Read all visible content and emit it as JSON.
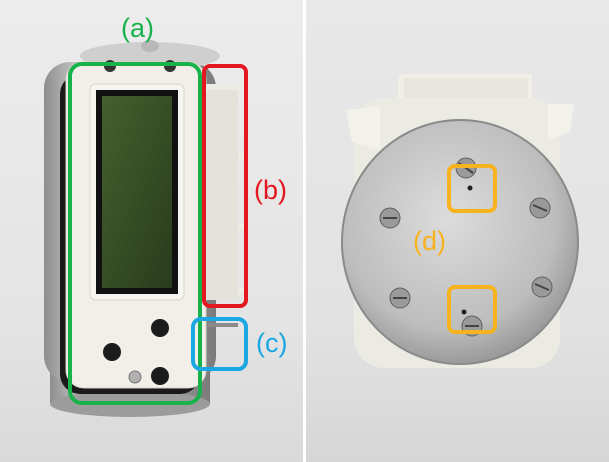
{
  "labels": {
    "a": "(a)",
    "b": "(b)",
    "c": "(c)",
    "d": "(d)"
  },
  "colors": {
    "box_a": "#17b24a",
    "box_b": "#e3171f",
    "box_c": "#1aa7e2",
    "box_d": "#f6b31d"
  }
}
